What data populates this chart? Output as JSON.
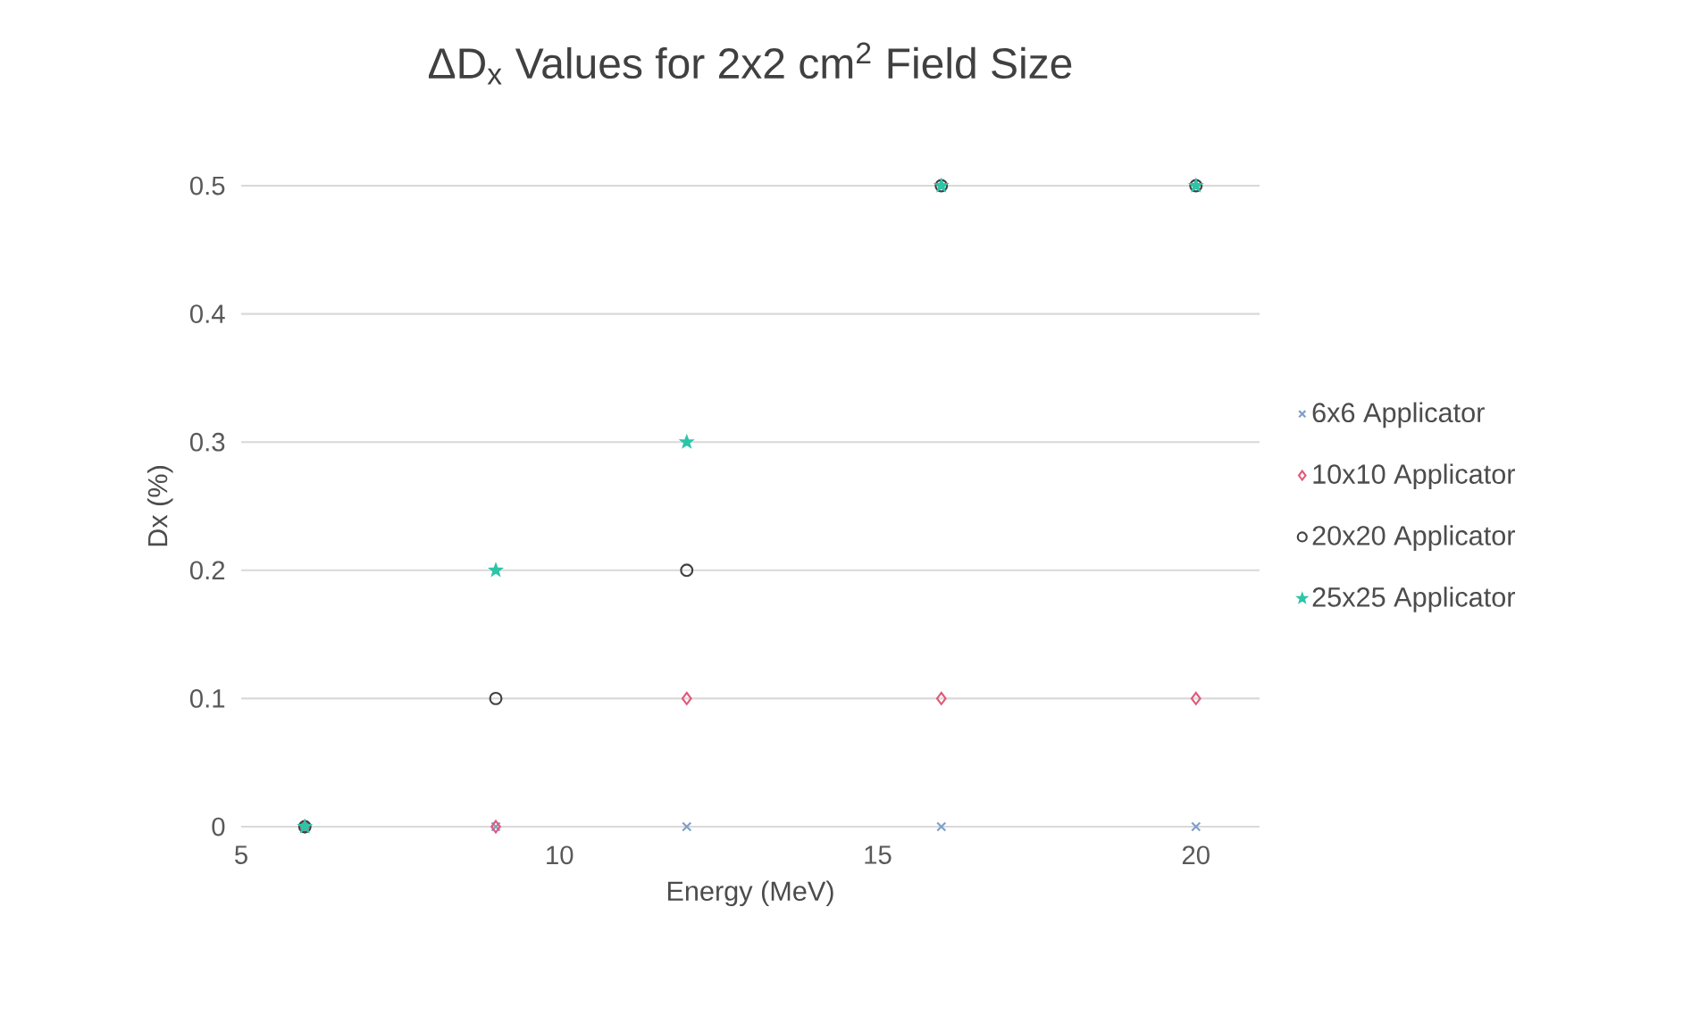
{
  "chart_data": {
    "type": "scatter",
    "title": "ΔD$_{x}$ Values for 2x2 cm$^{2}$ Field Size",
    "xlabel": "Energy (MeV)",
    "ylabel": "Dx (%)",
    "x": [
      6,
      9,
      12,
      16,
      20
    ],
    "series": [
      {
        "name": "6x6 Applicator",
        "color": "#7f9fc8",
        "marker": "cross",
        "values": [
          0,
          0,
          0,
          0,
          0
        ]
      },
      {
        "name": "10x10 Applicator",
        "color": "#e05a7a",
        "marker": "diamond",
        "values": [
          0,
          0,
          0.1,
          0.1,
          0.1
        ]
      },
      {
        "name": "20x20 Applicator",
        "color": "#404040",
        "marker": "circle",
        "values": [
          0,
          0.1,
          0.2,
          0.5,
          0.5
        ]
      },
      {
        "name": "25x25 Applicator",
        "color": "#2ec4a8",
        "marker": "star",
        "values": [
          0,
          0.2,
          0.3,
          0.5,
          0.5
        ]
      }
    ],
    "xlim": [
      5,
      21
    ],
    "xticks": [
      5,
      10,
      15,
      20
    ],
    "ylim": [
      0,
      0.5
    ],
    "yticks": [
      0,
      0.1,
      0.2,
      0.3,
      0.4,
      0.5
    ],
    "grid": "y",
    "legend": "right"
  }
}
